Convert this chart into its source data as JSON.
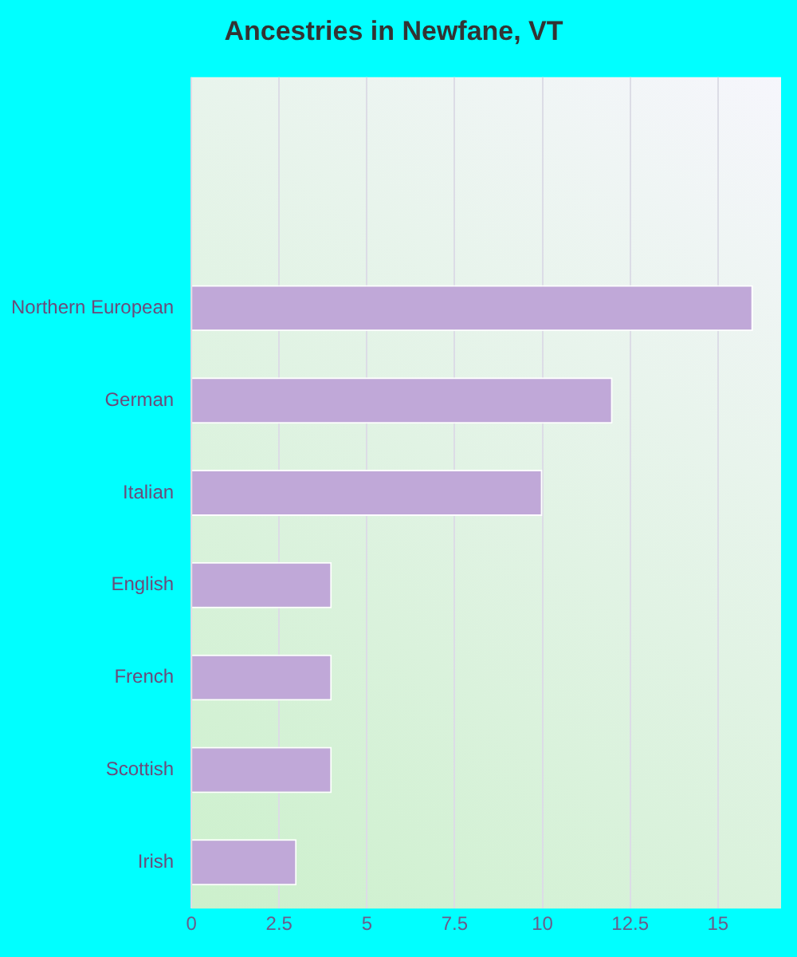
{
  "chart_data": {
    "type": "bar",
    "title": "Ancestries in Newfane, VT",
    "orientation": "horizontal",
    "categories": [
      null,
      null,
      "Northern European",
      "German",
      "Italian",
      "English",
      "French",
      "Scottish",
      "Irish"
    ],
    "values": [
      null,
      null,
      16,
      12,
      10,
      4,
      4,
      4,
      3
    ],
    "color": "#c0a8d8",
    "xlim": [
      0,
      16.8
    ],
    "xticks": [
      0,
      2.5,
      5,
      7.5,
      10,
      12.5,
      15
    ],
    "grid": "x",
    "legend": false
  }
}
